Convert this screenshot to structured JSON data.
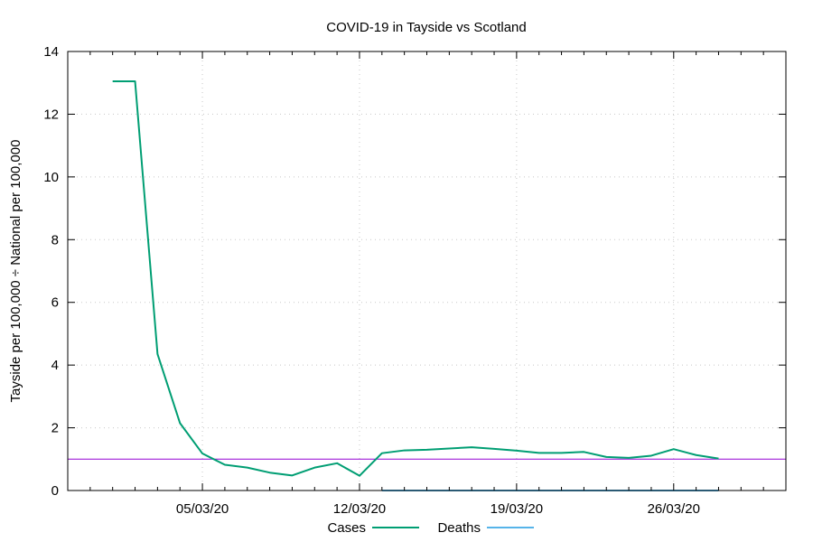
{
  "chart_data": {
    "type": "line",
    "title": "COVID-19 in Tayside vs Scotland",
    "xlabel": "",
    "ylabel": "Tayside per 100,000 ÷ National per 100,000",
    "x_type": "date",
    "xlim": [
      "2020-02-28",
      "2020-03-31"
    ],
    "ylim": [
      0,
      14
    ],
    "x_ticks": [
      "2020-03-05",
      "2020-03-12",
      "2020-03-19",
      "2020-03-26"
    ],
    "x_tick_labels": [
      "05/03/20",
      "12/03/20",
      "19/03/20",
      "26/03/20"
    ],
    "y_ticks": [
      0,
      2,
      4,
      6,
      8,
      10,
      12,
      14
    ],
    "y_tick_labels": [
      "0",
      "2",
      "4",
      "6",
      "8",
      "10",
      "12",
      "14"
    ],
    "grid": true,
    "legend_position": "bottom",
    "reference_line": {
      "y": 1,
      "color": "#9400d3"
    },
    "series": [
      {
        "name": "Cases",
        "color": "#009e73",
        "points": [
          [
            "2020-03-01",
            13.05
          ],
          [
            "2020-03-02",
            13.05
          ],
          [
            "2020-03-03",
            4.35
          ],
          [
            "2020-03-04",
            2.15
          ],
          [
            "2020-03-05",
            1.18
          ],
          [
            "2020-03-06",
            0.82
          ],
          [
            "2020-03-07",
            0.73
          ],
          [
            "2020-03-08",
            0.57
          ],
          [
            "2020-03-09",
            0.48
          ],
          [
            "2020-03-10",
            0.73
          ],
          [
            "2020-03-11",
            0.87
          ],
          [
            "2020-03-12",
            0.47
          ],
          [
            "2020-03-13",
            1.19
          ],
          [
            "2020-03-14",
            1.28
          ],
          [
            "2020-03-15",
            1.3
          ],
          [
            "2020-03-16",
            1.34
          ],
          [
            "2020-03-17",
            1.38
          ],
          [
            "2020-03-18",
            1.33
          ],
          [
            "2020-03-19",
            1.27
          ],
          [
            "2020-03-20",
            1.2
          ],
          [
            "2020-03-21",
            1.2
          ],
          [
            "2020-03-22",
            1.23
          ],
          [
            "2020-03-23",
            1.07
          ],
          [
            "2020-03-24",
            1.04
          ],
          [
            "2020-03-25",
            1.11
          ],
          [
            "2020-03-26",
            1.32
          ],
          [
            "2020-03-27",
            1.13
          ],
          [
            "2020-03-28",
            1.02
          ]
        ]
      },
      {
        "name": "Deaths",
        "color": "#56b4e9",
        "points": [
          [
            "2020-03-13",
            0
          ],
          [
            "2020-03-14",
            0
          ],
          [
            "2020-03-15",
            0
          ],
          [
            "2020-03-16",
            0
          ],
          [
            "2020-03-17",
            0
          ],
          [
            "2020-03-18",
            0
          ],
          [
            "2020-03-19",
            0
          ],
          [
            "2020-03-20",
            0
          ],
          [
            "2020-03-21",
            0
          ],
          [
            "2020-03-22",
            0
          ],
          [
            "2020-03-23",
            0
          ],
          [
            "2020-03-24",
            0
          ],
          [
            "2020-03-25",
            0
          ],
          [
            "2020-03-26",
            0
          ],
          [
            "2020-03-27",
            0
          ],
          [
            "2020-03-28",
            0
          ]
        ]
      }
    ]
  }
}
